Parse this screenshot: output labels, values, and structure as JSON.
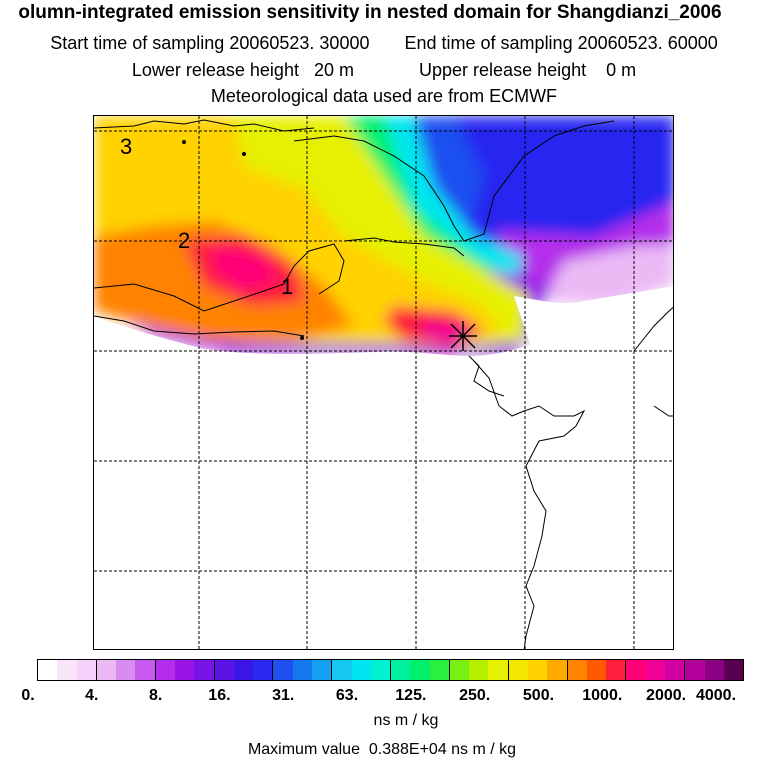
{
  "header": {
    "title": "olumn-integrated emission sensitivity in nested domain for Shangdianzi_2006",
    "start_label": "Start time of sampling",
    "start_value": "20060523. 30000",
    "end_label": "End time of sampling",
    "end_value": "20060523. 60000",
    "lower_label": "Lower release height",
    "lower_value": "20 m",
    "upper_label": "Upper release height",
    "upper_value": "0 m",
    "met_line": "Meteorological data used are from ECMWF"
  },
  "map": {
    "contour_labels": [
      "3",
      "2",
      "1"
    ],
    "receptor_marker": "star-icon"
  },
  "colorbar": {
    "colors": [
      "#ffffff",
      "#fae6fa",
      "#f5d2fa",
      "#ebbaf5",
      "#d78cf0",
      "#c65af0",
      "#b42deb",
      "#9b14e6",
      "#7a14e6",
      "#5a14e6",
      "#3b14e6",
      "#2828f0",
      "#1e50f0",
      "#1478f0",
      "#14a0f0",
      "#14c8f0",
      "#00e6f0",
      "#00f0d2",
      "#00f0a0",
      "#00f06e",
      "#28f03c",
      "#78f014",
      "#b4f000",
      "#e6f000",
      "#f5e600",
      "#ffd200",
      "#ffaa00",
      "#ff8200",
      "#ff5a00",
      "#ff1e3c",
      "#ff0078",
      "#f00096",
      "#d200a0",
      "#b4009b",
      "#8c0082",
      "#5a0050"
    ],
    "tick_labels": [
      "0.",
      "4.",
      "8.",
      "16.",
      "31.",
      "63.",
      "125.",
      "250.",
      "500.",
      "1000.",
      "2000.",
      "4000."
    ],
    "unit": "ns m / kg"
  },
  "footer": {
    "max_label": "Maximum value",
    "max_value": "0.388E+04 ns m / kg"
  }
}
